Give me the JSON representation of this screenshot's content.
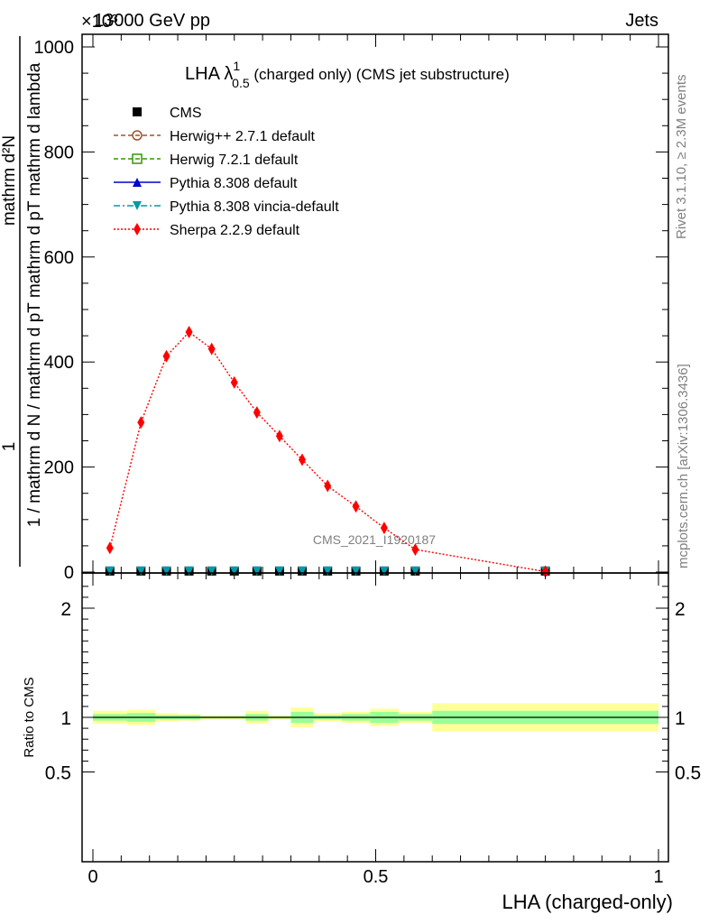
{
  "header": {
    "energy": "13000 GeV pp",
    "channel": "Jets",
    "exponent": "×10³"
  },
  "side_labels": {
    "rivet": "Rivet 3.1.10, ≥ 2.3M events",
    "mcplots": "mcplots.cern.ch [arXiv:1306.3436]"
  },
  "watermark": "CMS_2021_I1920187",
  "main_title": {
    "base": "LHA λ",
    "sup": "1",
    "sub": "0.5",
    "rest": " (charged only) (CMS jet substructure)"
  },
  "ylabel": {
    "numerator": "mathrm d²N",
    "denominator": "1 / mathrm d N / mathrm d pT mathrm d pT mathrm d lambda"
  },
  "ratio_ylabel": "Ratio to CMS",
  "xlabel": "LHA (charged-only)",
  "colors": {
    "cms": "#000000",
    "herwigpp": "#a0522d",
    "herwig7": "#339900",
    "pythia": "#0000cc",
    "vincia": "#0099aa",
    "sherpa": "#ff0000",
    "band_inner": "#99ff99",
    "band_outer": "#ffff99"
  },
  "legend": [
    {
      "key": "cms",
      "label": "CMS",
      "marker": "square-filled",
      "line": "none"
    },
    {
      "key": "herwigpp",
      "label": "Herwig++ 2.7.1 default",
      "marker": "circle-open",
      "line": "dashed"
    },
    {
      "key": "herwig7",
      "label": "Herwig 7.2.1 default",
      "marker": "square-open",
      "line": "dashed"
    },
    {
      "key": "pythia",
      "label": "Pythia 8.308 default",
      "marker": "triangle-up",
      "line": "solid"
    },
    {
      "key": "vincia",
      "label": "Pythia 8.308 vincia-default",
      "marker": "triangle-down",
      "line": "dashdot"
    },
    {
      "key": "sherpa",
      "label": "Sherpa 2.2.9 default",
      "marker": "diamond",
      "line": "dotted"
    }
  ],
  "chart_data": [
    {
      "type": "line",
      "panel": "main",
      "xlim": [
        0,
        1
      ],
      "ylim": [
        0,
        1020
      ],
      "yticks": [
        0,
        200,
        400,
        600,
        800,
        1000
      ],
      "ytick_labels": [
        "0",
        "200",
        "400",
        "600",
        "800",
        "1000"
      ],
      "x_bin_edges": [
        0.0,
        0.06,
        0.11,
        0.15,
        0.19,
        0.23,
        0.27,
        0.31,
        0.35,
        0.39,
        0.44,
        0.49,
        0.54,
        0.6,
        1.0
      ],
      "x": [
        0.03,
        0.085,
        0.13,
        0.17,
        0.21,
        0.25,
        0.29,
        0.33,
        0.37,
        0.415,
        0.465,
        0.515,
        0.57,
        0.8
      ],
      "series": [
        {
          "name": "CMS",
          "key": "cms",
          "values": [
            2,
            2,
            2,
            2,
            2,
            2,
            2,
            2,
            2,
            2,
            2,
            2,
            2,
            2
          ]
        },
        {
          "name": "Pythia 8.308 vincia-default",
          "key": "vincia",
          "values": [
            2,
            2,
            2,
            2,
            2,
            2,
            2,
            2,
            2,
            2,
            2,
            2,
            2,
            2
          ]
        },
        {
          "name": "Sherpa 2.2.9 default",
          "key": "sherpa",
          "values": [
            46,
            285,
            411,
            457,
            425,
            361,
            304,
            259,
            214,
            164,
            125,
            84,
            43,
            1
          ]
        }
      ]
    },
    {
      "type": "area",
      "panel": "ratio",
      "xlim": [
        0,
        1
      ],
      "ylim": [
        0.4,
        2.3
      ],
      "yticks": [
        0.5,
        1,
        2
      ],
      "ytick_labels": [
        "0.5",
        "1",
        "2"
      ],
      "xticks": [
        0,
        0.5,
        1
      ],
      "xtick_labels": [
        "0",
        "0.5",
        "1"
      ],
      "reference": 1,
      "bins": [
        {
          "lo": 0.0,
          "hi": 0.06,
          "inner": [
            0.97,
            1.03
          ],
          "outer": [
            0.94,
            1.06
          ]
        },
        {
          "lo": 0.06,
          "hi": 0.11,
          "inner": [
            0.96,
            1.04
          ],
          "outer": [
            0.93,
            1.07
          ]
        },
        {
          "lo": 0.11,
          "hi": 0.15,
          "inner": [
            0.98,
            1.02
          ],
          "outer": [
            0.96,
            1.04
          ]
        },
        {
          "lo": 0.15,
          "hi": 0.19,
          "inner": [
            0.98,
            1.02
          ],
          "outer": [
            0.97,
            1.03
          ]
        },
        {
          "lo": 0.19,
          "hi": 0.23,
          "inner": [
            0.99,
            1.01
          ],
          "outer": [
            0.98,
            1.02
          ]
        },
        {
          "lo": 0.23,
          "hi": 0.27,
          "inner": [
            0.99,
            1.01
          ],
          "outer": [
            0.98,
            1.02
          ]
        },
        {
          "lo": 0.27,
          "hi": 0.31,
          "inner": [
            0.97,
            1.03
          ],
          "outer": [
            0.94,
            1.06
          ]
        },
        {
          "lo": 0.31,
          "hi": 0.35,
          "inner": [
            0.99,
            1.01
          ],
          "outer": [
            0.98,
            1.02
          ]
        },
        {
          "lo": 0.35,
          "hi": 0.39,
          "inner": [
            0.95,
            1.05
          ],
          "outer": [
            0.91,
            1.09
          ]
        },
        {
          "lo": 0.39,
          "hi": 0.44,
          "inner": [
            0.98,
            1.02
          ],
          "outer": [
            0.96,
            1.04
          ]
        },
        {
          "lo": 0.44,
          "hi": 0.49,
          "inner": [
            0.97,
            1.03
          ],
          "outer": [
            0.95,
            1.05
          ]
        },
        {
          "lo": 0.49,
          "hi": 0.54,
          "inner": [
            0.95,
            1.05
          ],
          "outer": [
            0.92,
            1.08
          ]
        },
        {
          "lo": 0.54,
          "hi": 0.6,
          "inner": [
            0.97,
            1.03
          ],
          "outer": [
            0.95,
            1.05
          ]
        },
        {
          "lo": 0.6,
          "hi": 1.0,
          "inner": [
            0.94,
            1.06
          ],
          "outer": [
            0.87,
            1.13
          ]
        }
      ]
    }
  ]
}
